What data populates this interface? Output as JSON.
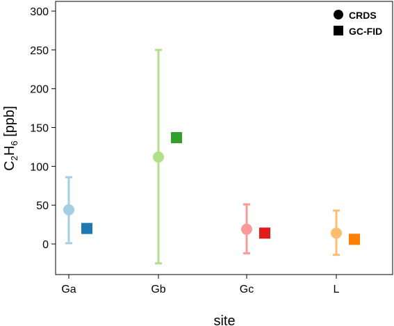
{
  "chart_data": {
    "type": "scatter",
    "categories": [
      "Ga",
      "Gb",
      "Gc",
      "L"
    ],
    "xlabel": "site",
    "ylabel_main": "C",
    "ylabel_sub1": "2",
    "ylabel_mid": "H",
    "ylabel_sub2": "6",
    "ylabel_unit": " [ppb]",
    "ylim": [
      -40,
      310
    ],
    "yticks": [
      0,
      50,
      100,
      150,
      200,
      250,
      300
    ],
    "grid": false,
    "legend_position": "top-right",
    "series": [
      {
        "name": "CRDS",
        "marker": "circle",
        "colors": [
          "#a6cee3",
          "#b2df8a",
          "#fb9a99",
          "#fdbf6f"
        ],
        "values": [
          44,
          112,
          19,
          14
        ],
        "error_low": [
          1,
          -25,
          -12,
          -14
        ],
        "error_high": [
          86,
          250,
          51,
          43
        ]
      },
      {
        "name": "GC-FID",
        "marker": "square",
        "colors": [
          "#1f78b4",
          "#33a02c",
          "#e31a1c",
          "#ff7f00"
        ],
        "values": [
          20,
          137,
          14,
          6
        ]
      }
    ]
  }
}
